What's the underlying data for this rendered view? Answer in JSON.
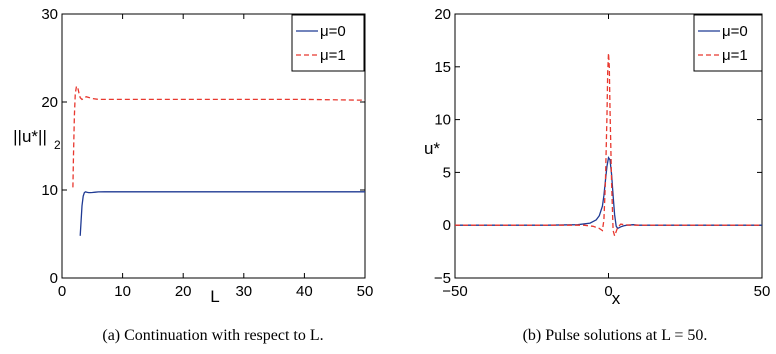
{
  "chart_data": [
    {
      "type": "line",
      "xlabel": "L",
      "ylabel": "||u*||",
      "ylabel_sub": "2",
      "xlim": [
        0,
        50
      ],
      "ylim": [
        0,
        30
      ],
      "xticks": [
        "0",
        "10",
        "20",
        "30",
        "40",
        "50"
      ],
      "yticks": [
        "0",
        "10",
        "20",
        "30"
      ],
      "xtick_values": [
        0,
        10,
        20,
        30,
        40,
        50
      ],
      "ytick_values": [
        0,
        10,
        20,
        30
      ],
      "legend": "top-right",
      "grid": false,
      "caption": "(a)  Continuation with respect to L.",
      "series": [
        {
          "name": "μ=0",
          "color": "#1f3a93",
          "dash": "solid",
          "x": [
            3.0,
            3.15,
            3.3,
            3.5,
            3.7,
            3.9,
            4.1,
            4.4,
            4.7,
            5.0,
            5.5,
            6.0,
            7.0,
            8.0,
            10.0,
            15.0,
            20.0,
            30.0,
            40.0,
            50.0
          ],
          "y": [
            4.8,
            6.5,
            8.2,
            9.3,
            9.7,
            9.8,
            9.75,
            9.7,
            9.7,
            9.72,
            9.75,
            9.78,
            9.8,
            9.8,
            9.8,
            9.8,
            9.8,
            9.8,
            9.8,
            9.8
          ]
        },
        {
          "name": "μ=1",
          "color": "#e8382f",
          "dash": "dashed",
          "x": [
            1.8,
            1.9,
            2.05,
            2.2,
            2.4,
            2.6,
            2.8,
            3.0,
            3.3,
            3.6,
            4.0,
            4.5,
            5.0,
            6.0,
            8.0,
            10.0,
            15.0,
            20.0,
            30.0,
            40.0,
            50.0
          ],
          "y": [
            10.3,
            14.0,
            18.5,
            21.0,
            21.8,
            21.6,
            21.0,
            20.5,
            20.3,
            20.4,
            20.6,
            20.5,
            20.4,
            20.3,
            20.3,
            20.3,
            20.3,
            20.3,
            20.3,
            20.3,
            20.2
          ]
        }
      ]
    },
    {
      "type": "line",
      "xlabel": "x",
      "ylabel": "u*",
      "xlim": [
        -50,
        50
      ],
      "ylim": [
        -5,
        20
      ],
      "xticks": [
        "−50",
        "0",
        "50"
      ],
      "yticks": [
        "−5",
        "0",
        "5",
        "10",
        "15",
        "20"
      ],
      "xtick_values": [
        -50,
        0,
        50
      ],
      "ytick_values": [
        -5,
        0,
        5,
        10,
        15,
        20
      ],
      "legend": "top-right",
      "grid": false,
      "caption": "(b)  Pulse solutions at L = 50.",
      "series": [
        {
          "name": "μ=0",
          "color": "#1f3a93",
          "dash": "solid",
          "x": [
            -50,
            -20,
            -10,
            -6,
            -4,
            -3,
            -2,
            -1.5,
            -1,
            -0.5,
            0,
            0.5,
            1,
            1.5,
            2,
            2.5,
            3,
            4,
            5,
            6,
            8,
            10,
            20,
            50
          ],
          "y": [
            0,
            0,
            0.05,
            0.2,
            0.5,
            0.9,
            1.8,
            2.8,
            4.2,
            5.6,
            6.4,
            6.2,
            4.8,
            2.8,
            1.0,
            -0.1,
            -0.3,
            -0.15,
            -0.05,
            0,
            0.05,
            0,
            0,
            0
          ]
        },
        {
          "name": "μ=1",
          "color": "#e8382f",
          "dash": "dashed",
          "x": [
            -50,
            -20,
            -8,
            -5,
            -3,
            -2,
            -1.5,
            -1,
            -0.5,
            -0.25,
            0,
            0.25,
            0.5,
            1,
            1.5,
            2,
            2.5,
            3,
            4,
            5,
            7,
            10,
            20,
            50
          ],
          "y": [
            0,
            0,
            0,
            -0.1,
            -0.3,
            -0.5,
            0.5,
            4.0,
            10.5,
            14.5,
            16.3,
            15.0,
            11.0,
            4.0,
            -0.5,
            -1.0,
            -0.6,
            -0.2,
            0.1,
            0.05,
            0,
            0,
            0,
            0
          ]
        }
      ]
    }
  ]
}
